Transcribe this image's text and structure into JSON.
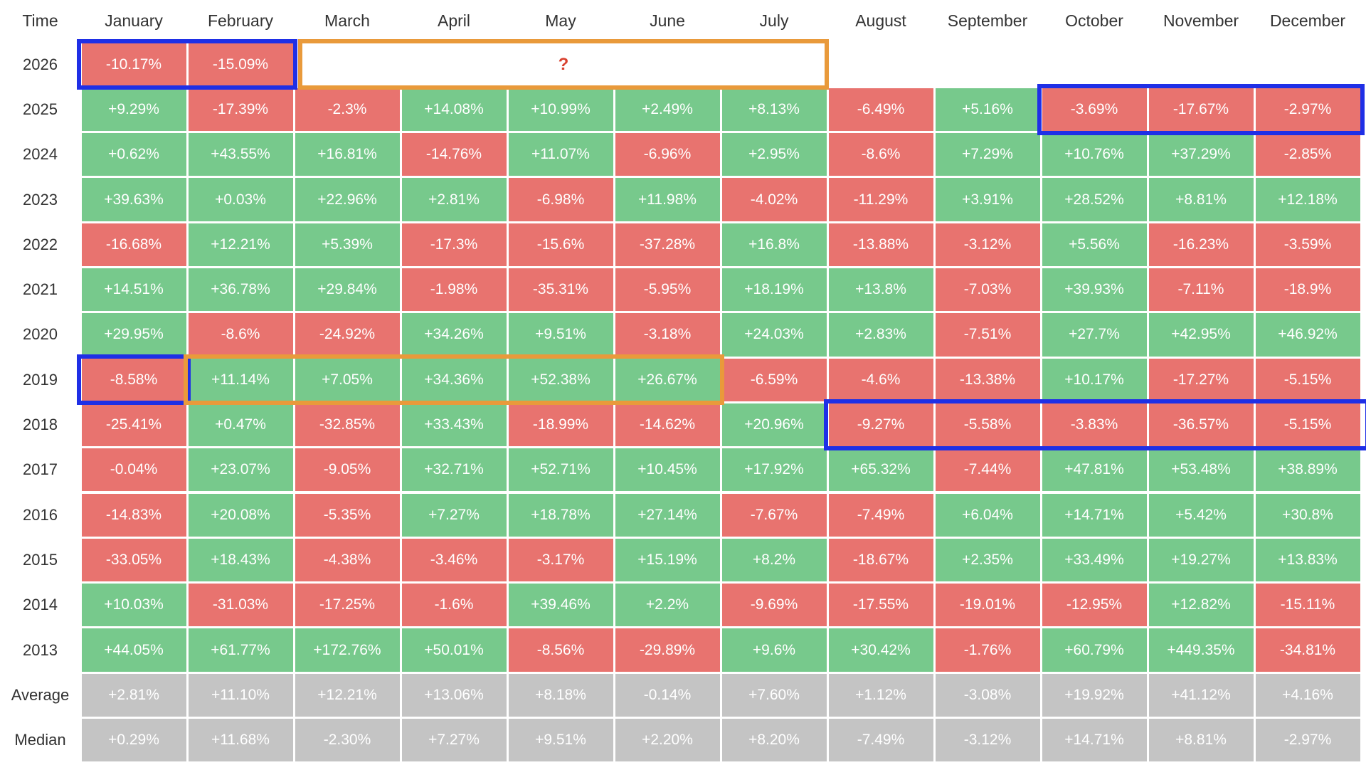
{
  "table": {
    "header": [
      "Time",
      "January",
      "February",
      "March",
      "April",
      "May",
      "June",
      "July",
      "August",
      "September",
      "October",
      "November",
      "December"
    ],
    "rows": [
      {
        "label": "2026",
        "cells": [
          "-10.17%",
          "-15.09%"
        ]
      },
      {
        "label": "2025",
        "cells": [
          "+9.29%",
          "-17.39%",
          "-2.3%",
          "+14.08%",
          "+10.99%",
          "+2.49%",
          "+8.13%",
          "-6.49%",
          "+5.16%",
          "-3.69%",
          "-17.67%",
          "-2.97%"
        ]
      },
      {
        "label": "2024",
        "cells": [
          "+0.62%",
          "+43.55%",
          "+16.81%",
          "-14.76%",
          "+11.07%",
          "-6.96%",
          "+2.95%",
          "-8.6%",
          "+7.29%",
          "+10.76%",
          "+37.29%",
          "-2.85%"
        ]
      },
      {
        "label": "2023",
        "cells": [
          "+39.63%",
          "+0.03%",
          "+22.96%",
          "+2.81%",
          "-6.98%",
          "+11.98%",
          "-4.02%",
          "-11.29%",
          "+3.91%",
          "+28.52%",
          "+8.81%",
          "+12.18%"
        ]
      },
      {
        "label": "2022",
        "cells": [
          "-16.68%",
          "+12.21%",
          "+5.39%",
          "-17.3%",
          "-15.6%",
          "-37.28%",
          "+16.8%",
          "-13.88%",
          "-3.12%",
          "+5.56%",
          "-16.23%",
          "-3.59%"
        ]
      },
      {
        "label": "2021",
        "cells": [
          "+14.51%",
          "+36.78%",
          "+29.84%",
          "-1.98%",
          "-35.31%",
          "-5.95%",
          "+18.19%",
          "+13.8%",
          "-7.03%",
          "+39.93%",
          "-7.11%",
          "-18.9%"
        ]
      },
      {
        "label": "2020",
        "cells": [
          "+29.95%",
          "-8.6%",
          "-24.92%",
          "+34.26%",
          "+9.51%",
          "-3.18%",
          "+24.03%",
          "+2.83%",
          "-7.51%",
          "+27.7%",
          "+42.95%",
          "+46.92%"
        ]
      },
      {
        "label": "2019",
        "cells": [
          "-8.58%",
          "+11.14%",
          "+7.05%",
          "+34.36%",
          "+52.38%",
          "+26.67%",
          "-6.59%",
          "-4.6%",
          "-13.38%",
          "+10.17%",
          "-17.27%",
          "-5.15%"
        ]
      },
      {
        "label": "2018",
        "cells": [
          "-25.41%",
          "+0.47%",
          "-32.85%",
          "+33.43%",
          "-18.99%",
          "-14.62%",
          "+20.96%",
          "-9.27%",
          "-5.58%",
          "-3.83%",
          "-36.57%",
          "-5.15%"
        ]
      },
      {
        "label": "2017",
        "cells": [
          "-0.04%",
          "+23.07%",
          "-9.05%",
          "+32.71%",
          "+52.71%",
          "+10.45%",
          "+17.92%",
          "+65.32%",
          "-7.44%",
          "+47.81%",
          "+53.48%",
          "+38.89%"
        ]
      },
      {
        "label": "2016",
        "cells": [
          "-14.83%",
          "+20.08%",
          "-5.35%",
          "+7.27%",
          "+18.78%",
          "+27.14%",
          "-7.67%",
          "-7.49%",
          "+6.04%",
          "+14.71%",
          "+5.42%",
          "+30.8%"
        ]
      },
      {
        "label": "2015",
        "cells": [
          "-33.05%",
          "+18.43%",
          "-4.38%",
          "-3.46%",
          "-3.17%",
          "+15.19%",
          "+8.2%",
          "-18.67%",
          "+2.35%",
          "+33.49%",
          "+19.27%",
          "+13.83%"
        ]
      },
      {
        "label": "2014",
        "cells": [
          "+10.03%",
          "-31.03%",
          "-17.25%",
          "-1.6%",
          "+39.46%",
          "+2.2%",
          "-9.69%",
          "-17.55%",
          "-19.01%",
          "-12.95%",
          "+12.82%",
          "-15.11%"
        ]
      },
      {
        "label": "2013",
        "cells": [
          "+44.05%",
          "+61.77%",
          "+172.76%",
          "+50.01%",
          "-8.56%",
          "-29.89%",
          "+9.6%",
          "+30.42%",
          "-1.76%",
          "+60.79%",
          "+449.35%",
          "-34.81%"
        ]
      }
    ],
    "summary_rows": [
      {
        "label": "Average",
        "cells": [
          "+2.81%",
          "+11.10%",
          "+12.21%",
          "+13.06%",
          "+8.18%",
          "-0.14%",
          "+7.60%",
          "+1.12%",
          "-3.08%",
          "+19.92%",
          "+41.12%",
          "+4.16%"
        ]
      },
      {
        "label": "Median",
        "cells": [
          "+0.29%",
          "+11.68%",
          "-2.30%",
          "+7.27%",
          "+9.51%",
          "+2.20%",
          "+8.20%",
          "-7.49%",
          "-3.12%",
          "+14.71%",
          "+8.81%",
          "-2.97%"
        ]
      }
    ],
    "annotation": "?",
    "colors": {
      "up": "#77c98c",
      "down": "#e8736f",
      "summary": "#c4c4c4"
    }
  }
}
